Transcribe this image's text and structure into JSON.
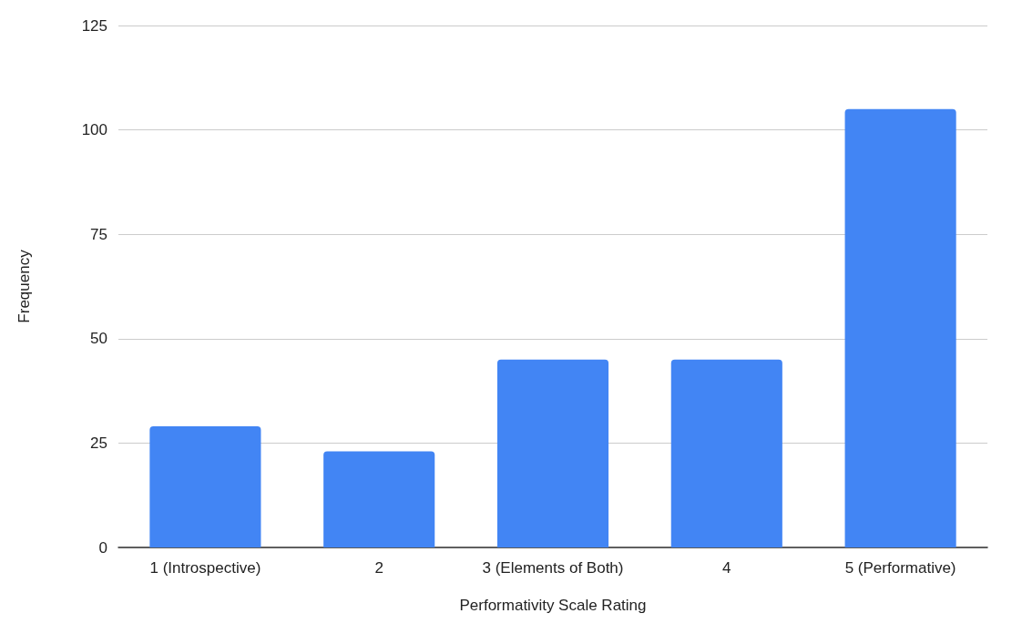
{
  "chart_data": {
    "type": "bar",
    "xlabel": "Performativity Scale Rating",
    "ylabel": "Frequency",
    "categories": [
      "1 (Introspective)",
      "2",
      "3 (Elements of Both)",
      "4",
      "5 (Performative)"
    ],
    "values": [
      29,
      23,
      45,
      45,
      105
    ],
    "color": "#4285f4",
    "ylim": [
      0,
      125
    ],
    "yticks": [
      0,
      25,
      50,
      75,
      100,
      125
    ],
    "grid": "y"
  }
}
